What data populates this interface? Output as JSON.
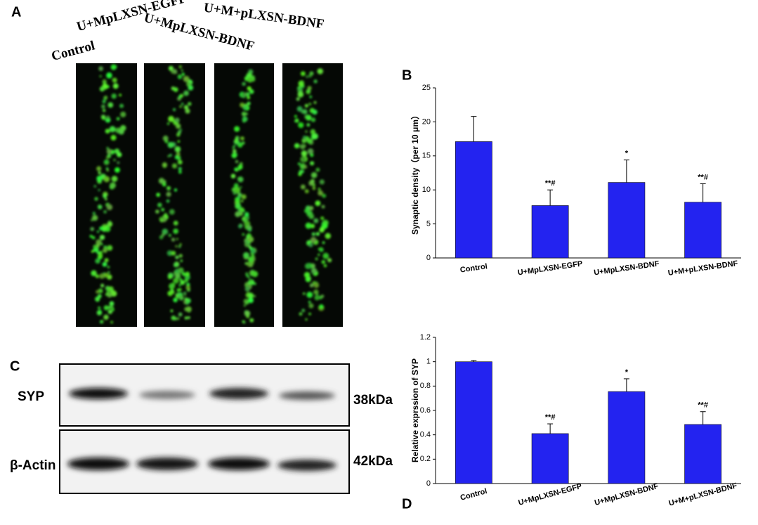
{
  "panel_labels": [
    "A",
    "B",
    "C",
    "D"
  ],
  "panel_a": {
    "labels": [
      "Control",
      "U+MpLXSN-EGFP",
      "U+MpLXSN-BDNF",
      "U+M+pLXSN-BDNF"
    ]
  },
  "panel_c": {
    "rows": [
      {
        "label": "SYP",
        "size": "38kDa"
      },
      {
        "label": "β-Actin",
        "size": "42kDa"
      }
    ]
  },
  "chart_data": [
    {
      "type": "bar",
      "y_label": "Synaptic density（per 10 μm）",
      "categories": [
        "Control",
        "U+MpLXSN-EGFP",
        "U+MpLXSN-BDNF",
        "U+M+pLXSN-BDNF"
      ],
      "values": [
        17.1,
        7.7,
        11.1,
        8.2
      ],
      "errors": [
        3.7,
        2.3,
        3.3,
        2.7
      ],
      "annotations": [
        null,
        "**#",
        "*",
        "**#"
      ],
      "color": "#2323f0",
      "ylim": [
        0,
        25
      ],
      "yticks": [
        0,
        5,
        10,
        15,
        20,
        25
      ]
    },
    {
      "type": "bar",
      "y_label": "Relative exprssion of SYP",
      "categories": [
        "Control",
        "U+MpLXSN-EGFP",
        "U+MpLXSN-BDNF",
        "U+M+pLXSN-BDNF"
      ],
      "values": [
        1.0,
        0.41,
        0.755,
        0.485
      ],
      "errors": [
        0.01,
        0.08,
        0.105,
        0.105
      ],
      "annotations": [
        null,
        "**#",
        "*",
        "**#"
      ],
      "color": "#2323f0",
      "ylim": [
        0,
        1.2
      ],
      "yticks": [
        0,
        0.2,
        0.4,
        0.6,
        0.8,
        1,
        1.2
      ]
    }
  ]
}
